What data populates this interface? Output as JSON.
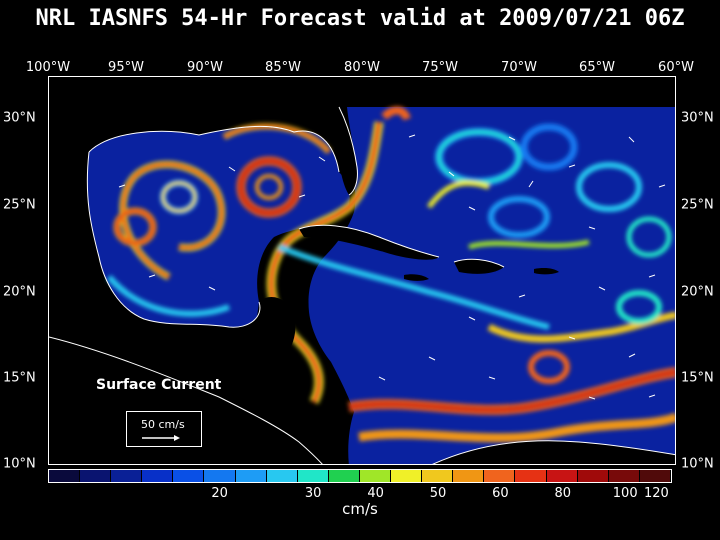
{
  "title": "NRL IASNFS  54-Hr Forecast valid at 2009/07/21 06Z",
  "lon_labels": [
    "100°W",
    "95°W",
    "90°W",
    "85°W",
    "80°W",
    "75°W",
    "70°W",
    "65°W",
    "60°W"
  ],
  "lat_labels": [
    "30°N",
    "25°N",
    "20°N",
    "15°N",
    "10°N"
  ],
  "overlay_label": "Surface Current",
  "reference_vector": "50 cm/s",
  "colorbar": {
    "colors": [
      "#0a0a3c",
      "#0a1470",
      "#0a2096",
      "#0830c8",
      "#0a50e6",
      "#1478f0",
      "#1e9cf5",
      "#28c8f0",
      "#20e6c8",
      "#20d050",
      "#a0e628",
      "#f0f028",
      "#f0c81e",
      "#f09614",
      "#f0641e",
      "#e63214",
      "#c81414",
      "#a00a0a",
      "#780a0a",
      "#500a0a"
    ],
    "ticks": [
      {
        "label": "20",
        "index": 5
      },
      {
        "label": "30",
        "index": 8
      },
      {
        "label": "40",
        "index": 10
      },
      {
        "label": "50",
        "index": 12
      },
      {
        "label": "60",
        "index": 14
      },
      {
        "label": "80",
        "index": 16
      },
      {
        "label": "100",
        "index": 18
      },
      {
        "label": "120",
        "index": 19
      }
    ],
    "units": "cm/s"
  },
  "colors": {
    "land": "#000000",
    "water_base": "#0a1a8c",
    "fast": "#e63214",
    "coast": "#ffffff"
  }
}
